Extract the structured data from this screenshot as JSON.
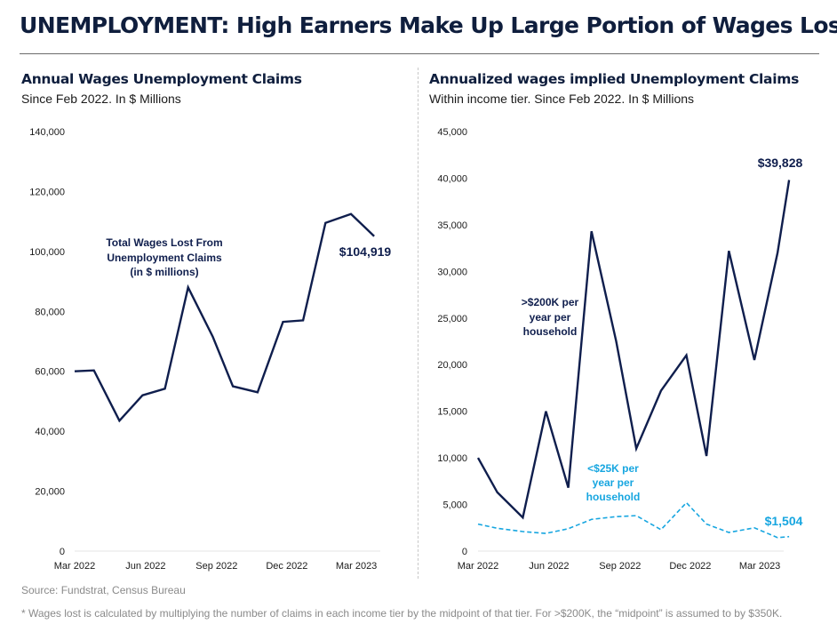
{
  "title": "UNEMPLOYMENT: High Earners Make Up Large Portion of Wages Lost",
  "panels": [
    {
      "title": "Annual Wages Unemployment Claims",
      "subtitle": "Since Feb 2022. In $ Millions"
    },
    {
      "title": "Annualized wages implied Unemployment Claims",
      "subtitle": "Within income tier. Since Feb 2022. In $ Millions"
    }
  ],
  "colors": {
    "dark_navy": "#0f1e4d",
    "light_blue": "#17a6e0"
  },
  "source": "Source: Fundstrat, Census Bureau",
  "footnote": "* Wages lost is calculated by multiplying the number of claims in each income tier by the midpoint of that tier. For >$200K, the “midpoint” is assumed to by $350K.",
  "chart_data": [
    {
      "type": "line",
      "xlim": [
        "2022-03",
        "2023-04"
      ],
      "x_tick_labels": [
        "Mar 2022",
        "Jun 2022",
        "Sep 2022",
        "Dec 2022",
        "Mar 2023"
      ],
      "ylim": [
        0,
        140000
      ],
      "y_tick_labels": [
        "0",
        "20,000",
        "40,000",
        "60,000",
        "80,000",
        "100,000",
        "120,000",
        "140,000"
      ],
      "grid": false,
      "series": [
        {
          "name": "Total Wages Lost From Unemployment Claims (in $ millions)",
          "color": "#0f1e4d",
          "x": [
            "2022-03-01",
            "2022-03-26",
            "2022-04-28",
            "2022-05-28",
            "2022-06-26",
            "2022-07-26",
            "2022-08-27",
            "2022-09-22",
            "2022-10-24",
            "2022-11-26",
            "2022-12-22",
            "2023-01-20",
            "2023-02-22",
            "2023-03-24"
          ],
          "values": [
            60000,
            60300,
            43500,
            52000,
            54200,
            88000,
            71500,
            55000,
            53000,
            76500,
            77000,
            109500,
            112500,
            105100
          ]
        }
      ],
      "annotations": [
        {
          "text": "Total Wages Lost From",
          "type": "series-label"
        },
        {
          "text": "Unemployment Claims",
          "type": "series-label"
        },
        {
          "text": "(in $ millions)",
          "type": "series-label"
        },
        {
          "text": "$104,919",
          "type": "end-value"
        }
      ]
    },
    {
      "type": "line",
      "xlim": [
        "2022-03",
        "2023-04"
      ],
      "x_tick_labels": [
        "Mar 2022",
        "Jun 2022",
        "Sep 2022",
        "Dec 2022",
        "Mar 2023"
      ],
      "ylim": [
        0,
        45000
      ],
      "y_tick_labels": [
        "0",
        "5,000",
        "10,000",
        "15,000",
        "20,000",
        "25,000",
        "30,000",
        "35,000",
        "40,000",
        "45,000"
      ],
      "grid": false,
      "series": [
        {
          "name": ">$200K per year per household",
          "color": "#0f1e4d",
          "dashed": false,
          "x": [
            "2022-03-01",
            "2022-03-26",
            "2022-04-28",
            "2022-05-28",
            "2022-06-26",
            "2022-07-26",
            "2022-08-27",
            "2022-09-22",
            "2022-10-24",
            "2022-11-26",
            "2022-12-22",
            "2023-01-20",
            "2023-02-22",
            "2023-03-24",
            "2023-04-08"
          ],
          "values": [
            10000,
            6300,
            3600,
            15000,
            6800,
            34300,
            22500,
            11000,
            17200,
            21000,
            10200,
            32200,
            20500,
            32000,
            39800
          ]
        },
        {
          "name": "<$25K per year per household",
          "color": "#17a6e0",
          "dashed": true,
          "x": [
            "2022-03-01",
            "2022-03-26",
            "2022-04-28",
            "2022-05-28",
            "2022-06-26",
            "2022-07-26",
            "2022-08-27",
            "2022-09-22",
            "2022-10-24",
            "2022-11-26",
            "2022-12-22",
            "2023-01-20",
            "2023-02-22",
            "2023-03-24",
            "2023-04-08"
          ],
          "values": [
            2900,
            2450,
            2100,
            1900,
            2400,
            3400,
            3700,
            3800,
            2300,
            5200,
            2900,
            2000,
            2500,
            1450,
            1550
          ]
        }
      ],
      "annotations": [
        {
          "text": ">$200K per",
          "type": "series-label"
        },
        {
          "text": "year per",
          "type": "series-label"
        },
        {
          "text": "household",
          "type": "series-label"
        },
        {
          "text": "<$25K per",
          "type": "series-label"
        },
        {
          "text": "year per",
          "type": "series-label"
        },
        {
          "text": "household",
          "type": "series-label"
        },
        {
          "text": "$39,828",
          "type": "end-value"
        },
        {
          "text": "$1,504",
          "type": "end-value"
        }
      ]
    }
  ]
}
